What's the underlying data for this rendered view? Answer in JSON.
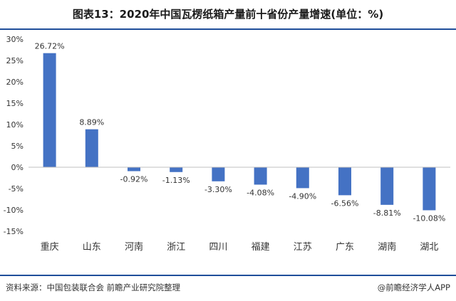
{
  "title": "图表13：2020年中国瓦楞纸箱产量前十省份产量增速(单位：%)",
  "footer": {
    "source": "资料来源：中国包装联合会 前瞻产业研究院整理",
    "credit": "@前瞻经济学人APP"
  },
  "chart_data": {
    "type": "bar",
    "title": "图表13：2020年中国瓦楞纸箱产量前十省份产量增速(单位：%)",
    "xlabel": "",
    "ylabel": "",
    "categories": [
      "重庆",
      "山东",
      "河南",
      "浙江",
      "四川",
      "福建",
      "江苏",
      "广东",
      "湖南",
      "湖北"
    ],
    "values": [
      26.72,
      8.89,
      -0.92,
      -1.13,
      -3.3,
      -4.08,
      -4.9,
      -6.56,
      -8.81,
      -10.08
    ],
    "value_labels": [
      "26.72%",
      "8.89%",
      "-0.92%",
      "-1.13%",
      "-3.30%",
      "-4.08%",
      "-4.90%",
      "-6.56%",
      "-8.81%",
      "-10.08%"
    ],
    "ylim": [
      -15,
      30
    ],
    "yticks": [
      30,
      25,
      20,
      15,
      10,
      5,
      0,
      -5,
      -10,
      -15
    ],
    "ytick_labels": [
      "30%",
      "25%",
      "20%",
      "15%",
      "10%",
      "5%",
      "0%",
      "-5%",
      "-10%",
      "-15%"
    ],
    "grid": false,
    "legend": "none",
    "bar_color": "#4472c4"
  }
}
